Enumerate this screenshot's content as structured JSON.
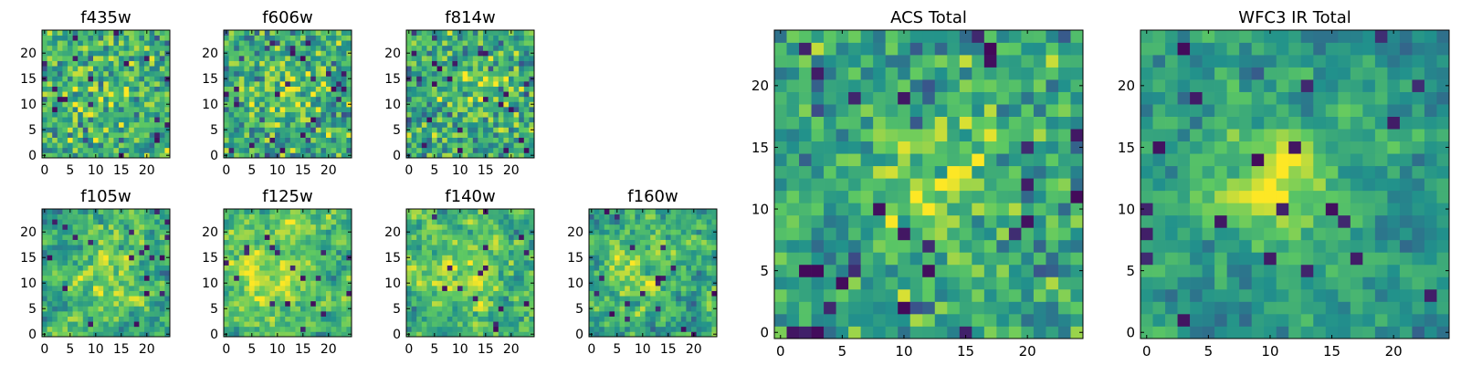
{
  "figure": {
    "background": "#ffffff"
  },
  "colormap": {
    "name": "viridis",
    "stops": [
      "#440154",
      "#3b528b",
      "#21918c",
      "#5ec962",
      "#fde725"
    ]
  },
  "chart_data": [
    {
      "type": "heatmap",
      "title": "f435w",
      "grid_size": 25,
      "xticks": [
        "0",
        "5",
        "10",
        "15",
        "20"
      ],
      "yticks": [
        "0",
        "5",
        "10",
        "15",
        "20"
      ],
      "seed": 435,
      "bias": 0.0,
      "smooth": 0,
      "noise": 0.3,
      "blob": {
        "x": 12,
        "y": 12,
        "r": 5,
        "amp": 0.08
      }
    },
    {
      "type": "heatmap",
      "title": "f606w",
      "grid_size": 25,
      "xticks": [
        "0",
        "5",
        "10",
        "15",
        "20"
      ],
      "yticks": [
        "0",
        "5",
        "10",
        "15",
        "20"
      ],
      "seed": 606,
      "bias": -0.02,
      "smooth": 0,
      "noise": 0.32,
      "blob": {
        "x": 12,
        "y": 12,
        "r": 4,
        "amp": 0.22
      }
    },
    {
      "type": "heatmap",
      "title": "f814w",
      "grid_size": 25,
      "xticks": [
        "0",
        "5",
        "10",
        "15",
        "20"
      ],
      "yticks": [
        "0",
        "5",
        "10",
        "15",
        "20"
      ],
      "seed": 814,
      "bias": -0.02,
      "smooth": 0,
      "noise": 0.32,
      "blob": {
        "x": 13,
        "y": 12,
        "r": 4,
        "amp": 0.2
      }
    },
    {
      "type": "heatmap",
      "title": "f105w",
      "grid_size": 25,
      "xticks": [
        "0",
        "5",
        "10",
        "15",
        "20"
      ],
      "yticks": [
        "0",
        "5",
        "10",
        "15",
        "20"
      ],
      "seed": 105,
      "bias": 0.0,
      "smooth": 1,
      "noise": 0.4,
      "blob": {
        "x": 12,
        "y": 11,
        "r": 5,
        "amp": 0.18
      }
    },
    {
      "type": "heatmap",
      "title": "f125w",
      "grid_size": 25,
      "xticks": [
        "0",
        "5",
        "10",
        "15",
        "20"
      ],
      "yticks": [
        "0",
        "5",
        "10",
        "15",
        "20"
      ],
      "seed": 125,
      "bias": 0.05,
      "smooth": 1,
      "noise": 0.38,
      "blob": {
        "x": 9,
        "y": 12,
        "r": 6,
        "amp": 0.2
      }
    },
    {
      "type": "heatmap",
      "title": "f140w",
      "grid_size": 25,
      "xticks": [
        "0",
        "5",
        "10",
        "15",
        "20"
      ],
      "yticks": [
        "0",
        "5",
        "10",
        "15",
        "20"
      ],
      "seed": 140,
      "bias": 0.02,
      "smooth": 1,
      "noise": 0.4,
      "blob": {
        "x": 11,
        "y": 12,
        "r": 5,
        "amp": 0.22
      }
    },
    {
      "type": "heatmap",
      "title": "f160w",
      "grid_size": 25,
      "xticks": [
        "0",
        "5",
        "10",
        "15",
        "20"
      ],
      "yticks": [
        "0",
        "5",
        "10",
        "15",
        "20"
      ],
      "seed": 160,
      "bias": -0.02,
      "smooth": 1,
      "noise": 0.4,
      "blob": {
        "x": 10,
        "y": 12,
        "r": 4,
        "amp": 0.26
      }
    },
    {
      "type": "heatmap",
      "title": "ACS Total",
      "grid_size": 25,
      "xticks": [
        "0",
        "5",
        "10",
        "15",
        "20"
      ],
      "yticks": [
        "0",
        "5",
        "10",
        "15",
        "20"
      ],
      "seed": 9001,
      "bias": -0.05,
      "smooth": 0,
      "noise": 0.26,
      "blob": {
        "x": 13,
        "y": 12,
        "r": 4,
        "amp": 0.25
      }
    },
    {
      "type": "heatmap",
      "title": "WFC3 IR Total",
      "grid_size": 25,
      "xticks": [
        "0",
        "5",
        "10",
        "15",
        "20"
      ],
      "yticks": [
        "0",
        "5",
        "10",
        "15",
        "20"
      ],
      "seed": 9002,
      "bias": -0.08,
      "smooth": 1,
      "noise": 0.3,
      "blob": {
        "x": 10,
        "y": 12,
        "r": 4,
        "amp": 0.32
      }
    }
  ]
}
